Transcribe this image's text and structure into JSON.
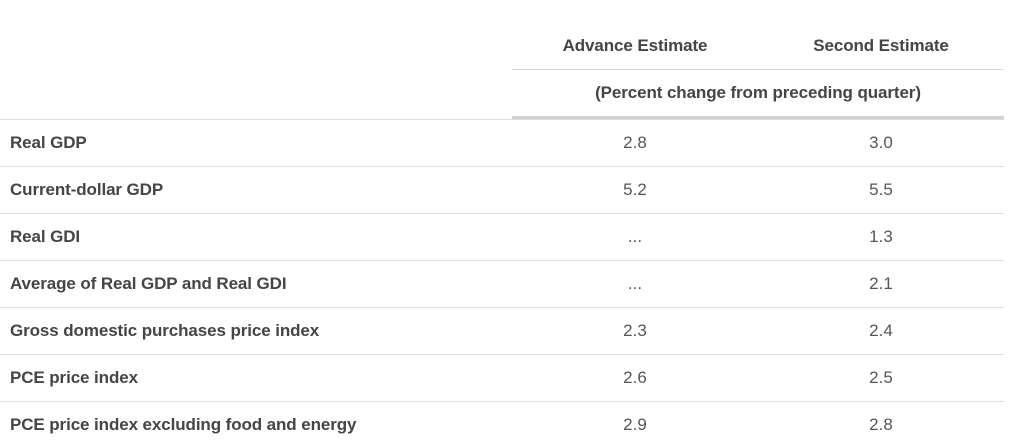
{
  "table": {
    "header": {
      "advance": "Advance Estimate",
      "second": "Second Estimate",
      "subheader": "(Percent change from preceding quarter)"
    },
    "rows": [
      {
        "label": "Real GDP",
        "advance": "2.8",
        "second": "3.0"
      },
      {
        "label": "Current-dollar GDP",
        "advance": "5.2",
        "second": "5.5"
      },
      {
        "label": "Real GDI",
        "advance": "...",
        "second": "1.3"
      },
      {
        "label": "Average of Real GDP and Real GDI",
        "advance": "...",
        "second": "2.1"
      },
      {
        "label": "Gross domestic purchases price index",
        "advance": "2.3",
        "second": "2.4"
      },
      {
        "label": "PCE price index",
        "advance": "2.6",
        "second": "2.5"
      },
      {
        "label": "PCE price index excluding food and energy",
        "advance": "2.9",
        "second": "2.8"
      }
    ],
    "colors": {
      "text_header": "#454545",
      "text_value": "#565656",
      "border_thin": "#d9d9d9",
      "border_thick": "#d1d1d1",
      "background": "#ffffff"
    }
  },
  "chart_data": {
    "type": "table",
    "title": "",
    "columns": [
      "",
      "Advance Estimate",
      "Second Estimate"
    ],
    "units_note": "(Percent change from preceding quarter)",
    "rows": [
      {
        "label": "Real GDP",
        "advance_estimate": "2.8",
        "second_estimate": "3.0"
      },
      {
        "label": "Current-dollar GDP",
        "advance_estimate": "5.2",
        "second_estimate": "5.5"
      },
      {
        "label": "Real GDI",
        "advance_estimate": "...",
        "second_estimate": "1.3"
      },
      {
        "label": "Average of Real GDP and Real GDI",
        "advance_estimate": "...",
        "second_estimate": "2.1"
      },
      {
        "label": "Gross domestic purchases price index",
        "advance_estimate": "2.3",
        "second_estimate": "2.4"
      },
      {
        "label": "PCE price index",
        "advance_estimate": "2.6",
        "second_estimate": "2.5"
      },
      {
        "label": "PCE price index excluding food and energy",
        "advance_estimate": "2.9",
        "second_estimate": "2.8"
      }
    ]
  }
}
